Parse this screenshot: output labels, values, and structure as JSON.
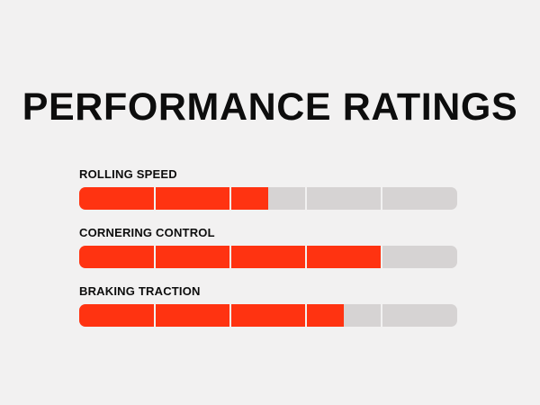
{
  "title": "PERFORMANCE RATINGS",
  "chart_data": {
    "type": "bar",
    "title": "PERFORMANCE RATINGS",
    "orientation": "horizontal",
    "segments_per_bar": 5,
    "xlim": [
      0,
      5
    ],
    "grid": false,
    "categories": [
      "ROLLING SPEED",
      "CORNERING CONTROL",
      "BRAKING TRACTION"
    ],
    "values": [
      2.5,
      4,
      3.5
    ],
    "colors": {
      "fill": "#ff3311",
      "track": "#d6d3d3",
      "text": "#0d0d0d",
      "background": "#f2f1f1"
    }
  }
}
